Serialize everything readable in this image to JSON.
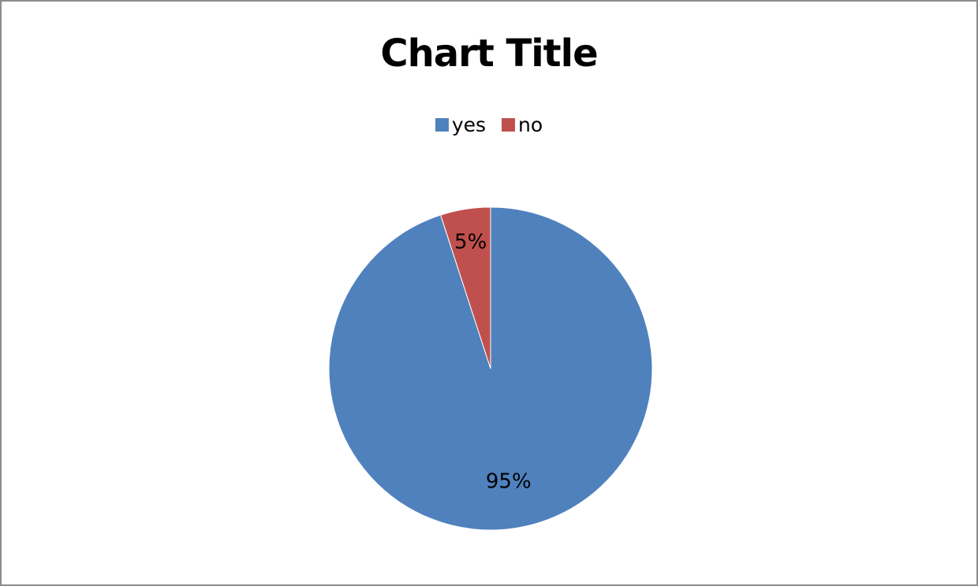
{
  "chart_data": {
    "type": "pie",
    "title": "Chart Title",
    "legend_position": "top",
    "slices": [
      {
        "name": "yes",
        "value": 95,
        "label": "95%",
        "color": "#4f81bd"
      },
      {
        "name": "no",
        "value": 5,
        "label": "5%",
        "color": "#c0504d"
      }
    ]
  }
}
